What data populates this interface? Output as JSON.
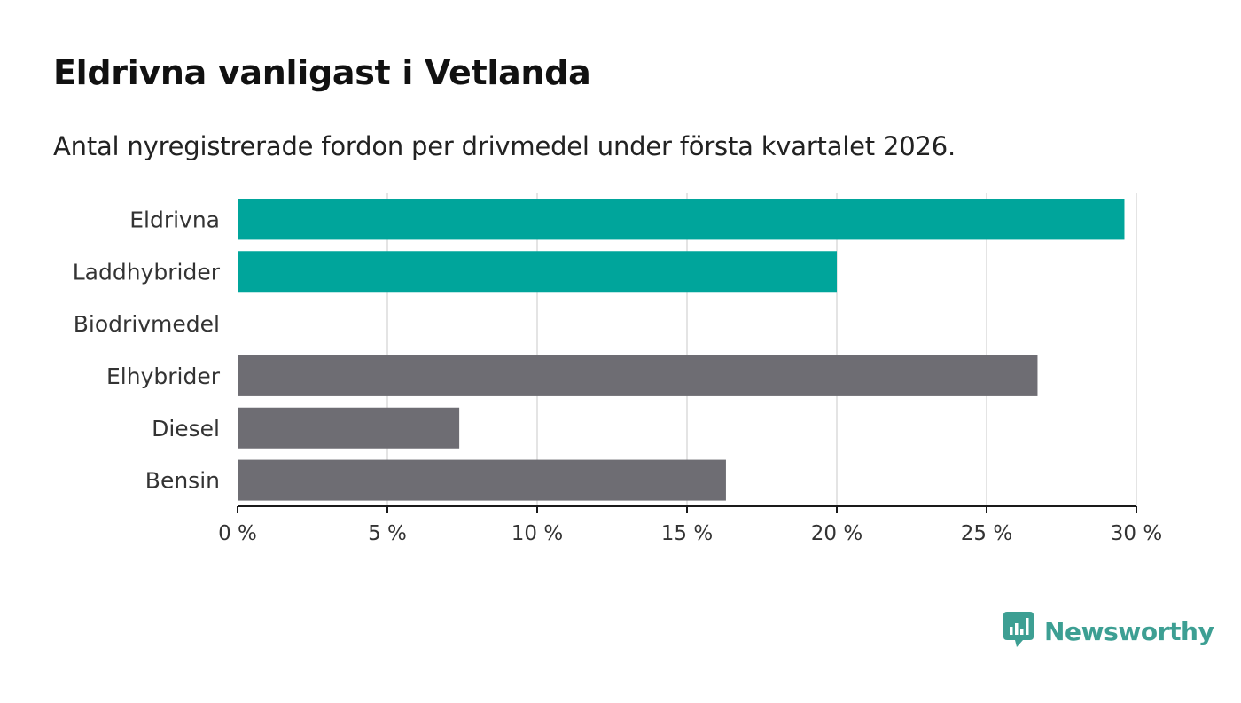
{
  "header": {
    "title": "Eldrivna vanligast i Vetlanda",
    "subtitle": "Antal nyregistrerade fordon per drivmedel under första kvartalet 2026."
  },
  "colors": {
    "highlight": "#00a59b",
    "neutral": "#6e6d73",
    "grid": "#dcdcdc",
    "axis": "#1a1a1a",
    "brand": "#3d9f93"
  },
  "chart_data": {
    "type": "bar",
    "orientation": "horizontal",
    "categories": [
      "Eldrivna",
      "Laddhybrider",
      "Biodrivmedel",
      "Elhybrider",
      "Diesel",
      "Bensin"
    ],
    "values": [
      29.6,
      20.0,
      0,
      26.7,
      7.4,
      16.3
    ],
    "bar_colors": [
      "highlight",
      "highlight",
      "neutral",
      "neutral",
      "neutral",
      "neutral"
    ],
    "xlim": [
      0,
      30
    ],
    "ticks": [
      0,
      5,
      10,
      15,
      20,
      25,
      30
    ],
    "tick_labels": [
      "0 %",
      "5 %",
      "10 %",
      "15 %",
      "20 %",
      "25 %",
      "30 %"
    ],
    "xlabel": "",
    "ylabel": "",
    "grid": true
  },
  "brand": {
    "logo_text": "Newsworthy",
    "icon": "newsworthy-logo-icon"
  }
}
